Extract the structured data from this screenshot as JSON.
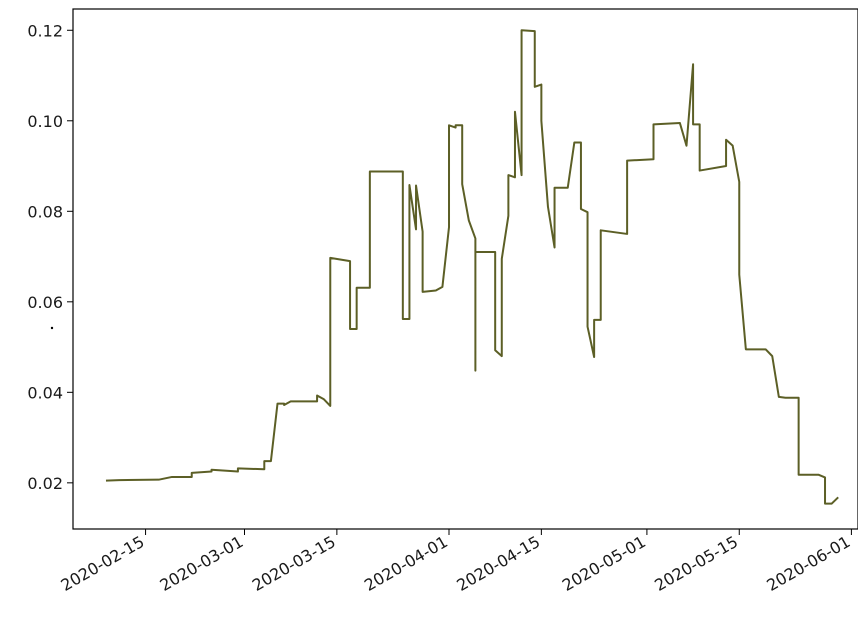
{
  "chart_data": {
    "type": "line",
    "title": "",
    "xlabel": "",
    "ylabel": "",
    "x_axis_type": "date",
    "xlim": [
      "2020-02-04",
      "2020-06-02"
    ],
    "ylim": [
      0.0098,
      0.1247
    ],
    "x_ticks": [
      "2020-02-15",
      "2020-03-01",
      "2020-03-15",
      "2020-04-01",
      "2020-04-15",
      "2020-05-01",
      "2020-05-15",
      "2020-06-01"
    ],
    "y_ticks": [
      "0.02",
      "0.04",
      "0.06",
      "0.08",
      "0.10",
      "0.12"
    ],
    "grid": false,
    "legend": "none",
    "line_color": "#5c5f26",
    "series": [
      {
        "points": [
          [
            "2020-02-09",
            0.0205
          ],
          [
            "2020-02-11",
            0.0206
          ],
          [
            "2020-02-17",
            0.0207
          ],
          [
            "2020-02-19",
            0.0213
          ],
          [
            "2020-02-22",
            0.0213
          ],
          [
            "2020-02-22",
            0.0222
          ],
          [
            "2020-02-25",
            0.0225
          ],
          [
            "2020-02-25",
            0.0229
          ],
          [
            "2020-02-29",
            0.0225
          ],
          [
            "2020-02-29",
            0.0232
          ],
          [
            "2020-03-04",
            0.023
          ],
          [
            "2020-03-04",
            0.0248
          ],
          [
            "2020-03-05",
            0.0248
          ],
          [
            "2020-03-06",
            0.0375
          ],
          [
            "2020-03-07",
            0.0375
          ],
          [
            "2020-03-07",
            0.0372
          ],
          [
            "2020-03-08",
            0.038
          ],
          [
            "2020-03-12",
            0.038
          ],
          [
            "2020-03-12",
            0.0393
          ],
          [
            "2020-03-13",
            0.0385
          ],
          [
            "2020-03-14",
            0.037
          ],
          [
            "2020-03-14",
            0.0697
          ],
          [
            "2020-03-17",
            0.069
          ],
          [
            "2020-03-17",
            0.054
          ],
          [
            "2020-03-18",
            0.054
          ],
          [
            "2020-03-18",
            0.0631
          ],
          [
            "2020-03-20",
            0.0631
          ],
          [
            "2020-03-20",
            0.0888
          ],
          [
            "2020-03-24",
            0.0888
          ],
          [
            "2020-03-25",
            0.0888
          ],
          [
            "2020-03-25",
            0.0562
          ],
          [
            "2020-03-26",
            0.0562
          ],
          [
            "2020-03-26",
            0.0858
          ],
          [
            "2020-03-27",
            0.076
          ],
          [
            "2020-03-27",
            0.0857
          ],
          [
            "2020-03-28",
            0.0755
          ],
          [
            "2020-03-28",
            0.0622
          ],
          [
            "2020-03-30",
            0.0625
          ],
          [
            "2020-03-31",
            0.0633
          ],
          [
            "2020-04-01",
            0.0765
          ],
          [
            "2020-04-01",
            0.099
          ],
          [
            "2020-04-02",
            0.0985
          ],
          [
            "2020-04-02",
            0.099
          ],
          [
            "2020-04-03",
            0.099
          ],
          [
            "2020-04-03",
            0.086
          ],
          [
            "2020-04-04",
            0.078
          ],
          [
            "2020-04-05",
            0.074
          ],
          [
            "2020-04-05",
            0.0448
          ],
          [
            "2020-04-05",
            0.071
          ],
          [
            "2020-04-08",
            0.071
          ],
          [
            "2020-04-08",
            0.0493
          ],
          [
            "2020-04-09",
            0.048
          ],
          [
            "2020-04-09",
            0.0695
          ],
          [
            "2020-04-10",
            0.079
          ],
          [
            "2020-04-10",
            0.088
          ],
          [
            "2020-04-11",
            0.0875
          ],
          [
            "2020-04-11",
            0.102
          ],
          [
            "2020-04-12",
            0.088
          ],
          [
            "2020-04-12",
            0.12
          ],
          [
            "2020-04-14",
            0.1198
          ],
          [
            "2020-04-14",
            0.1075
          ],
          [
            "2020-04-15",
            0.108
          ],
          [
            "2020-04-15",
            0.1
          ],
          [
            "2020-04-16",
            0.081
          ],
          [
            "2020-04-17",
            0.072
          ],
          [
            "2020-04-17",
            0.0852
          ],
          [
            "2020-04-19",
            0.0852
          ],
          [
            "2020-04-20",
            0.0952
          ],
          [
            "2020-04-21",
            0.0952
          ],
          [
            "2020-04-21",
            0.0805
          ],
          [
            "2020-04-22",
            0.0798
          ],
          [
            "2020-04-22",
            0.0545
          ],
          [
            "2020-04-23",
            0.0478
          ],
          [
            "2020-04-23",
            0.056
          ],
          [
            "2020-04-24",
            0.056
          ],
          [
            "2020-04-24",
            0.0758
          ],
          [
            "2020-04-28",
            0.075
          ],
          [
            "2020-04-28",
            0.0912
          ],
          [
            "2020-05-02",
            0.0915
          ],
          [
            "2020-05-02",
            0.0992
          ],
          [
            "2020-05-06",
            0.0995
          ],
          [
            "2020-05-07",
            0.0945
          ],
          [
            "2020-05-08",
            0.1125
          ],
          [
            "2020-05-08",
            0.0992
          ],
          [
            "2020-05-09",
            0.0992
          ],
          [
            "2020-05-09",
            0.089
          ],
          [
            "2020-05-13",
            0.09
          ],
          [
            "2020-05-13",
            0.0958
          ],
          [
            "2020-05-14",
            0.0945
          ],
          [
            "2020-05-15",
            0.0865
          ],
          [
            "2020-05-15",
            0.066
          ],
          [
            "2020-05-16",
            0.0495
          ],
          [
            "2020-05-19",
            0.0495
          ],
          [
            "2020-05-20",
            0.048
          ],
          [
            "2020-05-21",
            0.039
          ],
          [
            "2020-05-22",
            0.0388
          ],
          [
            "2020-05-24",
            0.0388
          ],
          [
            "2020-05-24",
            0.0218
          ],
          [
            "2020-05-27",
            0.0218
          ],
          [
            "2020-05-28",
            0.0212
          ],
          [
            "2020-05-28",
            0.0154
          ],
          [
            "2020-05-29",
            0.0154
          ],
          [
            "2020-05-30",
            0.0168
          ]
        ]
      }
    ]
  }
}
